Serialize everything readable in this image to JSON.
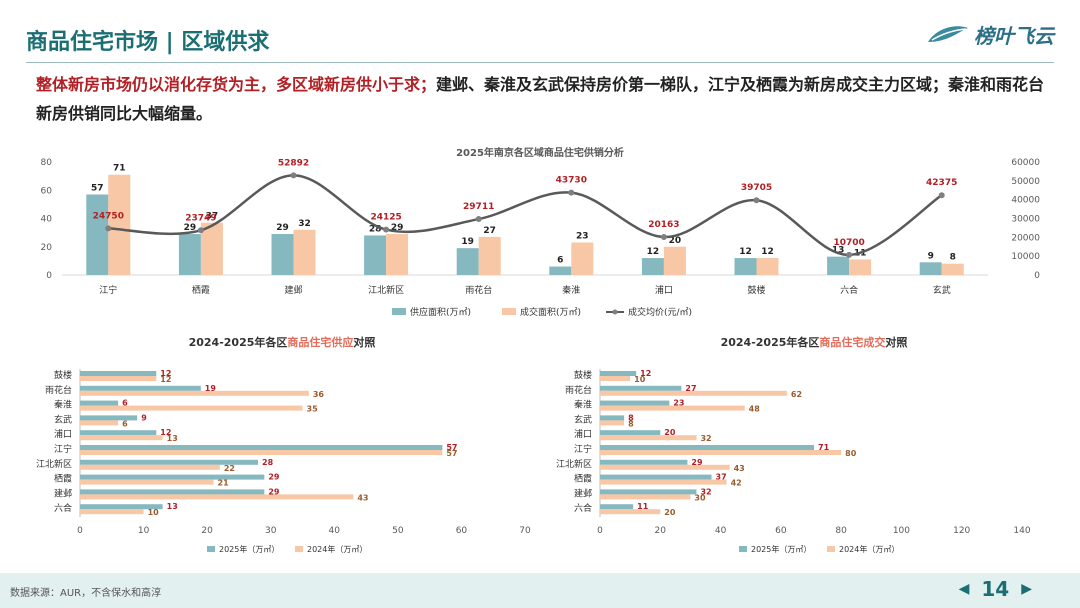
{
  "header": {
    "title": "商品住宅市场 | 区域供求",
    "logo_text": "榜叶飞云"
  },
  "summary": {
    "highlight": "整体新房市场仍以消化存货为主，多区域新房供小于求；",
    "rest": "建邺、秦淮及玄武保持房价第一梯队，江宁及栖霞为新房成交主力区域；秦淮和雨花台新房供销同比大幅缩量。"
  },
  "colors": {
    "teal": "#86b8bf",
    "peach": "#f8c7a6",
    "line": "#595959",
    "accent": "#b21f24",
    "brand": "#1b6f73"
  },
  "chart_data": [
    {
      "id": "top",
      "type": "bar",
      "title": "2025年南京各区域商品住宅供销分析",
      "categories": [
        "江宁",
        "栖霞",
        "建邺",
        "江北新区",
        "雨花台",
        "秦淮",
        "浦口",
        "鼓楼",
        "六合",
        "玄武"
      ],
      "series": [
        {
          "name": "供应面积(万㎡)",
          "values": [
            57,
            29,
            29,
            28,
            19,
            6,
            12,
            12,
            13,
            9
          ]
        },
        {
          "name": "成交面积(万㎡)",
          "values": [
            71,
            37,
            32,
            29,
            27,
            23,
            20,
            12,
            11,
            8
          ]
        }
      ],
      "line": {
        "name": "成交均价(元/㎡)",
        "values": [
          24750,
          23749,
          52892,
          24125,
          29711,
          43730,
          20163,
          39705,
          10700,
          42375
        ]
      },
      "ylim": [
        0,
        80
      ],
      "yticks": [
        0,
        20,
        40,
        60,
        80
      ],
      "y2lim": [
        0,
        60000
      ],
      "y2ticks": [
        0,
        10000,
        20000,
        30000,
        40000,
        50000,
        60000
      ]
    },
    {
      "id": "supply",
      "type": "bar",
      "title_parts": [
        "2024-2025年各区",
        "商品住宅供应",
        "对照"
      ],
      "categories": [
        "鼓楼",
        "雨花台",
        "秦淮",
        "玄武",
        "浦口",
        "江宁",
        "江北新区",
        "栖霞",
        "建邺",
        "六合"
      ],
      "series": [
        {
          "name": "2025年（万㎡）",
          "values": [
            12,
            19,
            6,
            9,
            12,
            57,
            28,
            29,
            29,
            13
          ]
        },
        {
          "name": "2024年（万㎡）",
          "values": [
            12,
            36,
            35,
            6,
            13,
            57,
            22,
            21,
            43,
            10
          ]
        }
      ],
      "xlim": [
        0,
        70
      ],
      "xticks": [
        0,
        10,
        20,
        30,
        40,
        50,
        60,
        70
      ]
    },
    {
      "id": "deal",
      "type": "bar",
      "title_parts": [
        "2024-2025年各区",
        "商品住宅成交",
        "对照"
      ],
      "categories": [
        "鼓楼",
        "雨花台",
        "秦淮",
        "玄武",
        "浦口",
        "江宁",
        "江北新区",
        "栖霞",
        "建邺",
        "六合"
      ],
      "series": [
        {
          "name": "2025年（万㎡）",
          "values": [
            12,
            27,
            23,
            8,
            20,
            71,
            29,
            37,
            32,
            11
          ]
        },
        {
          "name": "2024年（万㎡）",
          "values": [
            10,
            62,
            48,
            8,
            32,
            80,
            43,
            42,
            30,
            20
          ]
        }
      ],
      "xlim": [
        0,
        140
      ],
      "xticks": [
        0,
        20,
        40,
        60,
        80,
        100,
        120,
        140
      ]
    }
  ],
  "footer": {
    "source": "数据来源：AUR，不含保水和高淳",
    "page": "14",
    "prev_icon": "◀",
    "next_icon": "▶"
  }
}
